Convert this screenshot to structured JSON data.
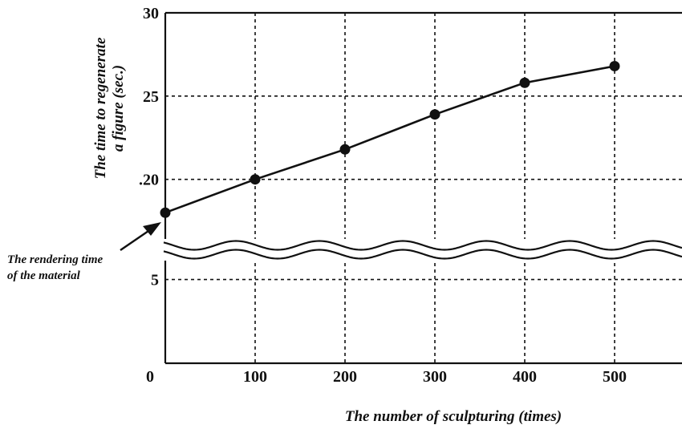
{
  "chart_data": {
    "type": "line",
    "x": [
      0,
      100,
      200,
      300,
      400,
      500
    ],
    "y": [
      18,
      20,
      21.8,
      23.9,
      25.8,
      26.8
    ],
    "xlabel": "The number of sculpturing (times)",
    "ylabel_line1": "The time to regenerate",
    "ylabel_line2": "a figure (sec.)",
    "x_ticks": [
      "0",
      "100",
      "200",
      "300",
      "400",
      "500"
    ],
    "y_ticks_upper": [
      "30",
      "25",
      ".20"
    ],
    "y_ticks_lower": [
      "5"
    ],
    "y_tick_upper_values": [
      30,
      25,
      20
    ],
    "y_tick_lower_values": [
      5
    ],
    "xlim": [
      0,
      575
    ],
    "ylim_upper": [
      17,
      30
    ],
    "ylim_lower": [
      0,
      9
    ],
    "axis_break": true,
    "grid": true,
    "annotation": {
      "line1": "The rendering time",
      "line2": "of the material",
      "points_to": [
        0,
        18
      ]
    }
  }
}
